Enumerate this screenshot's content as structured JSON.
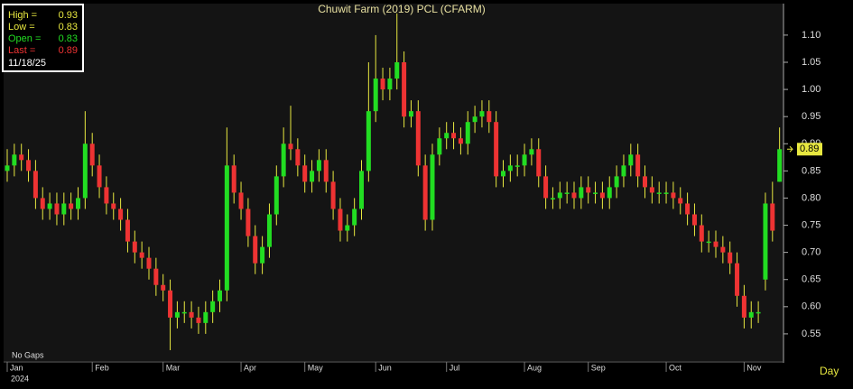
{
  "chart_data": {
    "type": "candlestick",
    "title": "Chuwit Farm (2019) PCL (CFARM)",
    "open": [
      0.85,
      0.86,
      0.88,
      0.87,
      0.85,
      0.8,
      0.78,
      0.79,
      0.77,
      0.79,
      0.78,
      0.8,
      0.9,
      0.86,
      0.82,
      0.79,
      0.78,
      0.76,
      0.72,
      0.7,
      0.69,
      0.67,
      0.64,
      0.63,
      0.58,
      0.59,
      0.59,
      0.58,
      0.57,
      0.59,
      0.61,
      0.63,
      0.86,
      0.81,
      0.78,
      0.73,
      0.68,
      0.71,
      0.77,
      0.84,
      0.9,
      0.89,
      0.86,
      0.83,
      0.85,
      0.87,
      0.83,
      0.78,
      0.74,
      0.75,
      0.78,
      0.85,
      0.96,
      1.02,
      1.0,
      1.02,
      1.05,
      0.95,
      0.96,
      0.86,
      0.76,
      0.88,
      0.91,
      0.92,
      0.91,
      0.9,
      0.94,
      0.95,
      0.96,
      0.94,
      0.84,
      0.85,
      0.86,
      0.86,
      0.88,
      0.89,
      0.84,
      0.8,
      0.8,
      0.81,
      0.81,
      0.8,
      0.82,
      0.81,
      0.81,
      0.8,
      0.82,
      0.84,
      0.86,
      0.88,
      0.84,
      0.82,
      0.81,
      0.81,
      0.81,
      0.8,
      0.79,
      0.77,
      0.75,
      0.72,
      0.72,
      0.71,
      0.7,
      0.68,
      0.62,
      0.58,
      0.59,
      0.65,
      0.79,
      0.83
    ],
    "high": [
      0.89,
      0.9,
      0.9,
      0.89,
      0.87,
      0.82,
      0.81,
      0.81,
      0.81,
      0.81,
      0.82,
      0.96,
      0.92,
      0.88,
      0.84,
      0.81,
      0.8,
      0.78,
      0.74,
      0.72,
      0.71,
      0.69,
      0.66,
      0.65,
      0.61,
      0.61,
      0.61,
      0.6,
      0.61,
      0.63,
      0.65,
      0.93,
      0.88,
      0.83,
      0.8,
      0.75,
      0.73,
      0.79,
      0.86,
      0.93,
      0.97,
      0.91,
      0.88,
      0.87,
      0.89,
      0.89,
      0.85,
      0.8,
      0.77,
      0.8,
      0.87,
      1.05,
      1.1,
      1.04,
      1.04,
      1.14,
      1.07,
      0.98,
      0.98,
      0.88,
      0.9,
      0.93,
      0.94,
      0.94,
      0.93,
      0.96,
      0.97,
      0.98,
      0.98,
      0.96,
      0.87,
      0.88,
      0.88,
      0.9,
      0.91,
      0.91,
      0.86,
      0.82,
      0.83,
      0.83,
      0.83,
      0.84,
      0.84,
      0.83,
      0.83,
      0.84,
      0.86,
      0.88,
      0.9,
      0.9,
      0.86,
      0.84,
      0.83,
      0.83,
      0.83,
      0.82,
      0.81,
      0.79,
      0.77,
      0.74,
      0.74,
      0.73,
      0.72,
      0.7,
      0.64,
      0.61,
      0.61,
      0.81,
      0.83,
      0.93
    ],
    "low": [
      0.83,
      0.84,
      0.85,
      0.83,
      0.78,
      0.76,
      0.76,
      0.75,
      0.75,
      0.76,
      0.76,
      0.78,
      0.84,
      0.8,
      0.77,
      0.76,
      0.74,
      0.7,
      0.68,
      0.67,
      0.65,
      0.62,
      0.61,
      0.52,
      0.56,
      0.57,
      0.56,
      0.55,
      0.55,
      0.57,
      0.59,
      0.61,
      0.79,
      0.76,
      0.71,
      0.66,
      0.66,
      0.69,
      0.75,
      0.82,
      0.87,
      0.84,
      0.81,
      0.81,
      0.83,
      0.81,
      0.76,
      0.72,
      0.72,
      0.73,
      0.76,
      0.83,
      0.94,
      0.98,
      0.98,
      1.0,
      0.93,
      0.93,
      0.84,
      0.74,
      0.74,
      0.86,
      0.89,
      0.89,
      0.88,
      0.88,
      0.92,
      0.93,
      0.92,
      0.82,
      0.82,
      0.83,
      0.84,
      0.84,
      0.86,
      0.82,
      0.78,
      0.78,
      0.78,
      0.79,
      0.78,
      0.78,
      0.79,
      0.79,
      0.78,
      0.78,
      0.8,
      0.82,
      0.84,
      0.82,
      0.8,
      0.79,
      0.79,
      0.79,
      0.78,
      0.77,
      0.75,
      0.73,
      0.7,
      0.7,
      0.69,
      0.68,
      0.66,
      0.6,
      0.56,
      0.56,
      0.57,
      0.63,
      0.72,
      0.83
    ],
    "close": [
      0.86,
      0.88,
      0.87,
      0.85,
      0.8,
      0.78,
      0.79,
      0.77,
      0.79,
      0.78,
      0.8,
      0.9,
      0.86,
      0.82,
      0.79,
      0.78,
      0.76,
      0.72,
      0.7,
      0.69,
      0.67,
      0.64,
      0.63,
      0.58,
      0.59,
      0.59,
      0.58,
      0.57,
      0.59,
      0.61,
      0.63,
      0.86,
      0.81,
      0.78,
      0.73,
      0.68,
      0.71,
      0.77,
      0.84,
      0.9,
      0.89,
      0.86,
      0.83,
      0.85,
      0.87,
      0.83,
      0.78,
      0.74,
      0.75,
      0.78,
      0.85,
      0.96,
      1.02,
      1.0,
      1.02,
      1.05,
      0.95,
      0.96,
      0.86,
      0.76,
      0.88,
      0.91,
      0.92,
      0.91,
      0.9,
      0.94,
      0.95,
      0.96,
      0.94,
      0.84,
      0.85,
      0.86,
      0.86,
      0.88,
      0.89,
      0.84,
      0.8,
      0.8,
      0.81,
      0.81,
      0.8,
      0.82,
      0.81,
      0.81,
      0.8,
      0.82,
      0.84,
      0.86,
      0.88,
      0.84,
      0.82,
      0.81,
      0.81,
      0.81,
      0.8,
      0.79,
      0.77,
      0.75,
      0.72,
      0.72,
      0.71,
      0.7,
      0.68,
      0.62,
      0.58,
      0.59,
      0.59,
      0.79,
      0.74,
      0.89
    ],
    "up_color": "#22dd22",
    "down_color": "#ee3333",
    "wick_color": "#e8e840",
    "ylim": [
      0.5,
      1.158
    ],
    "yticks": [
      0.55,
      {
        "value": 0.6,
        "label": "0.60"
      },
      0.65,
      {
        "value": 0.7,
        "label": "0.70"
      },
      0.75,
      {
        "value": 0.8,
        "label": "0.80"
      },
      0.85,
      {
        "value": 0.9,
        "label": "0.90"
      },
      0.95,
      {
        "value": 1,
        "label": "1.00"
      },
      1.05,
      {
        "value": 1.1,
        "label": "1.10"
      }
    ],
    "xticks": [
      {
        "value": 0,
        "label": "Jan"
      },
      {
        "value": 12,
        "label": "Feb"
      },
      {
        "value": 22,
        "label": "Mar"
      },
      {
        "value": 33,
        "label": "Apr"
      },
      {
        "value": 42,
        "label": "May"
      },
      {
        "value": 52,
        "label": "Jun"
      },
      {
        "value": 62,
        "label": "Jul"
      },
      {
        "value": 73,
        "label": "Aug"
      },
      {
        "value": 82,
        "label": "Sep"
      },
      {
        "value": 93,
        "label": "Oct"
      },
      {
        "value": 104,
        "label": "Nov"
      }
    ],
    "x_year": "2024",
    "gap_note": "No Gaps",
    "period": "Day",
    "info_labels": [
      "High =",
      "Low =",
      "Open =",
      "Last ="
    ],
    "last_date": "11/18/25"
  }
}
